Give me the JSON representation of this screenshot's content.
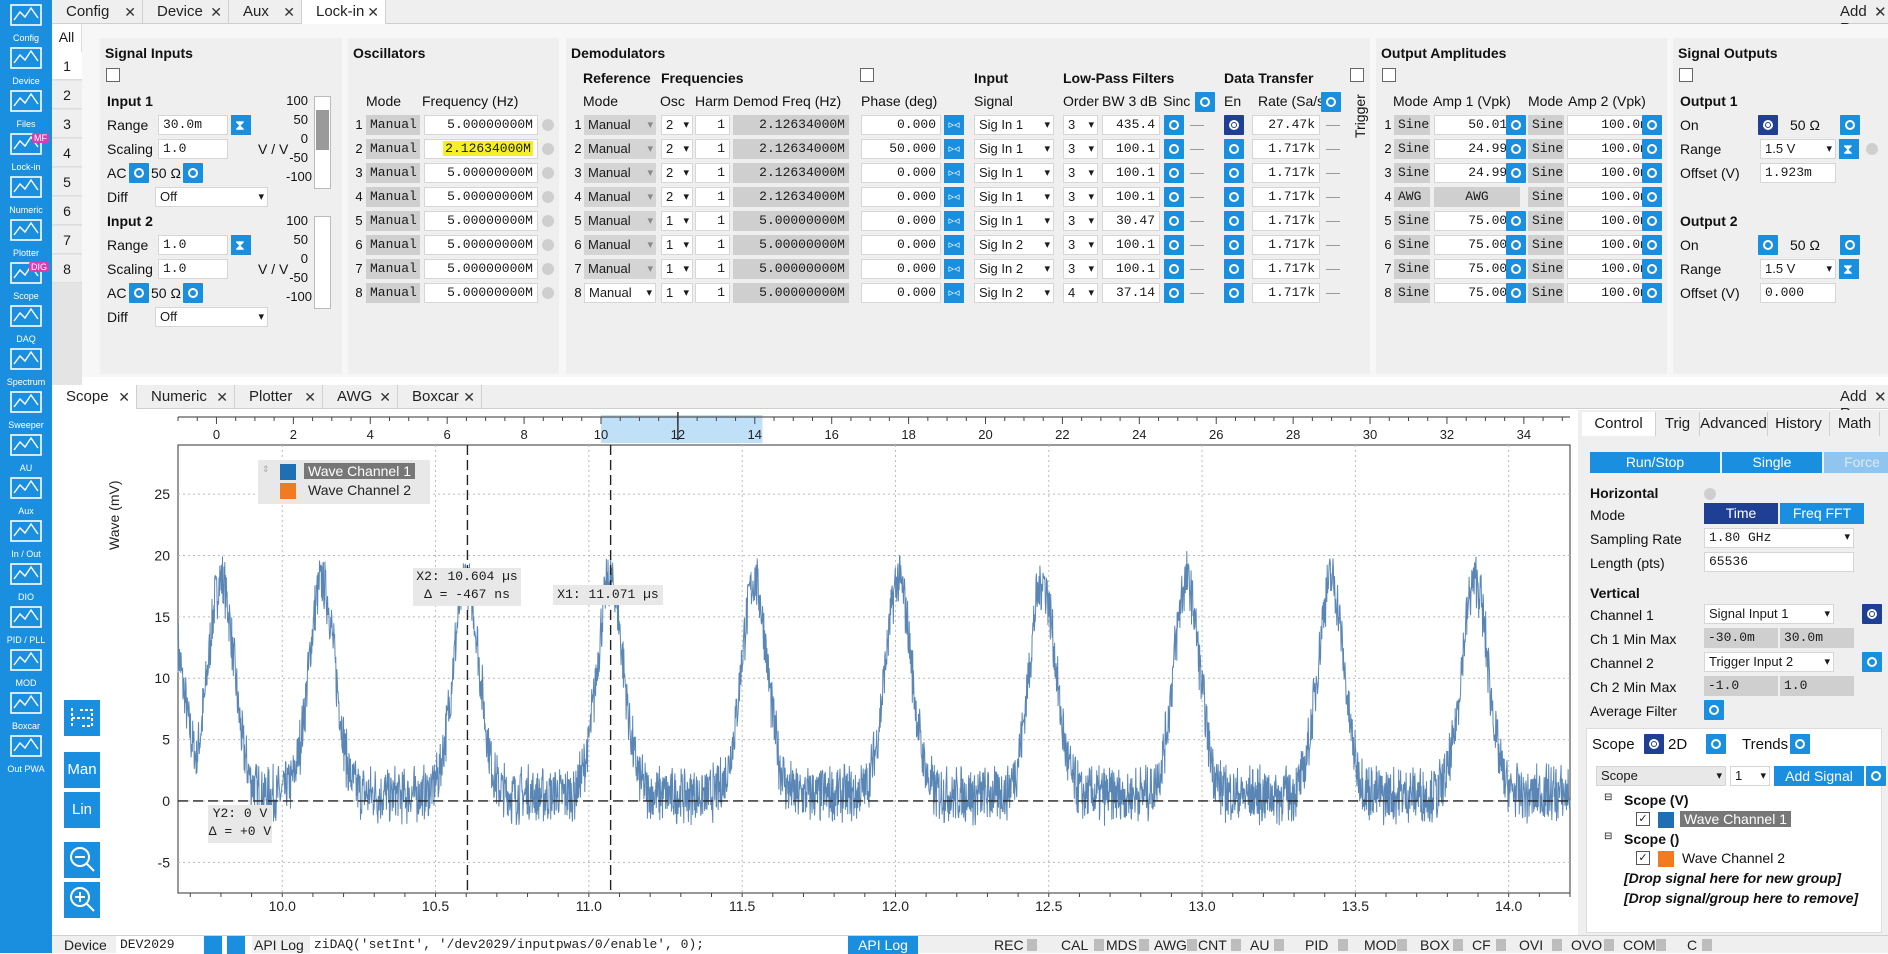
{
  "sidebar": [
    {
      "label": "Config",
      "icon": "gears-icon"
    },
    {
      "label": "Device",
      "icon": "device-icon"
    },
    {
      "label": "Files",
      "icon": "folder-icon"
    },
    {
      "label": "Lock-in",
      "icon": "lockin-icon",
      "badge": "MF"
    },
    {
      "label": "Numeric",
      "icon": "numeric-icon"
    },
    {
      "label": "Plotter",
      "icon": "plotter-icon"
    },
    {
      "label": "Scope",
      "icon": "scope-icon",
      "badge": "DIG"
    },
    {
      "label": "DAQ",
      "icon": "daq-icon"
    },
    {
      "label": "Spectrum",
      "icon": "spectrum-icon"
    },
    {
      "label": "Sweeper",
      "icon": "sweeper-icon"
    },
    {
      "label": "AU",
      "icon": "arithmetic-icon"
    },
    {
      "label": "Aux",
      "icon": "aux-icon"
    },
    {
      "label": "In / Out",
      "icon": "inout-icon"
    },
    {
      "label": "DIO",
      "icon": "dio-icon"
    },
    {
      "label": "PID / PLL",
      "icon": "pid-icon"
    },
    {
      "label": "MOD",
      "icon": "mod-icon"
    },
    {
      "label": "Boxcar",
      "icon": "boxcar-icon"
    },
    {
      "label": "Out PWA",
      "icon": "pwa-icon"
    }
  ],
  "top_tabs": [
    {
      "label": "Config"
    },
    {
      "label": "Device"
    },
    {
      "label": "Aux"
    },
    {
      "label": "Lock-in"
    }
  ],
  "add_row": "Add Row",
  "all_tab": "All",
  "row_tabs": [
    "1",
    "2",
    "3",
    "4",
    "5",
    "6",
    "7",
    "8"
  ],
  "signal_inputs": {
    "title": "Signal Inputs",
    "input1": {
      "title": "Input 1",
      "range_label": "Range",
      "range": "30.0m",
      "scaling_label": "Scaling",
      "scaling": "1.0",
      "unit": "V / V",
      "ac_label": "AC",
      "ohm": "50 Ω",
      "diff_label": "Diff",
      "diff": "Off",
      "scale": [
        "100",
        "50",
        "0",
        "-50",
        "-100"
      ]
    },
    "input2": {
      "title": "Input 2",
      "range_label": "Range",
      "range": "1.0",
      "scaling_label": "Scaling",
      "scaling": "1.0",
      "unit": "V / V",
      "ac_label": "AC",
      "ohm": "50 Ω",
      "diff_label": "Diff",
      "diff": "Off",
      "scale": [
        "100",
        "50",
        "0",
        "-50",
        "-100"
      ]
    }
  },
  "oscillators": {
    "title": "Oscillators",
    "col_mode": "Mode",
    "col_freq": "Frequency (Hz)",
    "rows": [
      {
        "mode": "Manual",
        "freq": "5.00000000M"
      },
      {
        "mode": "Manual",
        "freq": "2.12634000M"
      },
      {
        "mode": "Manual",
        "freq": "5.00000000M"
      },
      {
        "mode": "Manual",
        "freq": "5.00000000M"
      },
      {
        "mode": "Manual",
        "freq": "5.00000000M"
      },
      {
        "mode": "Manual",
        "freq": "5.00000000M"
      },
      {
        "mode": "Manual",
        "freq": "5.00000000M"
      },
      {
        "mode": "Manual",
        "freq": "5.00000000M"
      }
    ]
  },
  "demodulators": {
    "title": "Demodulators",
    "reference": "Reference",
    "frequencies": "Frequencies",
    "input": "Input",
    "lowpass": "Low-Pass Filters",
    "datatransfer": "Data Transfer",
    "trigger": "Trigger",
    "col_mode": "Mode",
    "col_osc": "Osc",
    "col_harm": "Harm",
    "col_demod": "Demod Freq (Hz)",
    "col_phase": "Phase (deg)",
    "col_signal": "Signal",
    "col_order": "Order",
    "col_bw": "BW 3 dB",
    "col_sinc": "Sinc",
    "col_en": "En",
    "col_rate": "Rate (Sa/s)",
    "rows": [
      {
        "mode": "Manual",
        "osc": "2",
        "harm": "1",
        "freq": "2.12634000M",
        "phase": "0.000",
        "signal": "Sig In 1",
        "order": "3",
        "bw": "435.4",
        "rate": "27.47k"
      },
      {
        "mode": "Manual",
        "osc": "2",
        "harm": "1",
        "freq": "2.12634000M",
        "phase": "50.000",
        "signal": "Sig In 1",
        "order": "3",
        "bw": "100.1",
        "rate": "1.717k"
      },
      {
        "mode": "Manual",
        "osc": "2",
        "harm": "1",
        "freq": "2.12634000M",
        "phase": "0.000",
        "signal": "Sig In 1",
        "order": "3",
        "bw": "100.1",
        "rate": "1.717k"
      },
      {
        "mode": "Manual",
        "osc": "2",
        "harm": "1",
        "freq": "2.12634000M",
        "phase": "0.000",
        "signal": "Sig In 1",
        "order": "3",
        "bw": "100.1",
        "rate": "1.717k"
      },
      {
        "mode": "Manual",
        "osc": "1",
        "harm": "1",
        "freq": "5.00000000M",
        "phase": "0.000",
        "signal": "Sig In 1",
        "order": "3",
        "bw": "30.47",
        "rate": "1.717k"
      },
      {
        "mode": "Manual",
        "osc": "1",
        "harm": "1",
        "freq": "5.00000000M",
        "phase": "0.000",
        "signal": "Sig In 2",
        "order": "3",
        "bw": "100.1",
        "rate": "1.717k"
      },
      {
        "mode": "Manual",
        "osc": "1",
        "harm": "1",
        "freq": "5.00000000M",
        "phase": "0.000",
        "signal": "Sig In 2",
        "order": "3",
        "bw": "100.1",
        "rate": "1.717k"
      },
      {
        "mode": "Manual",
        "osc": "1",
        "harm": "1",
        "freq": "5.00000000M",
        "phase": "0.000",
        "signal": "Sig In 2",
        "order": "4",
        "bw": "37.14",
        "rate": "1.717k"
      }
    ]
  },
  "output_amplitudes": {
    "title": "Output Amplitudes",
    "col_mode": "Mode",
    "col_amp1": "Amp 1 (Vpk)",
    "col_mode2": "Mode",
    "col_amp2": "Amp 2 (Vpk)",
    "rows": [
      {
        "mode": "Sine",
        "amp1": "50.01m",
        "mode2": "Sine",
        "amp2": "100.0m"
      },
      {
        "mode": "Sine",
        "amp1": "24.99m",
        "mode2": "Sine",
        "amp2": "100.0m"
      },
      {
        "mode": "Sine",
        "amp1": "24.99m",
        "mode2": "Sine",
        "amp2": "100.0m"
      },
      {
        "mode": "AWG",
        "amp1": "AWG",
        "mode2": "Sine",
        "amp2": "100.0m"
      },
      {
        "mode": "Sine",
        "amp1": "75.00m",
        "mode2": "Sine",
        "amp2": "100.0m"
      },
      {
        "mode": "Sine",
        "amp1": "75.00m",
        "mode2": "Sine",
        "amp2": "100.0m"
      },
      {
        "mode": "Sine",
        "amp1": "75.00m",
        "mode2": "Sine",
        "amp2": "100.0m"
      },
      {
        "mode": "Sine",
        "amp1": "75.00m",
        "mode2": "Sine",
        "amp2": "100.0m"
      }
    ]
  },
  "signal_outputs": {
    "title": "Signal Outputs",
    "output1": {
      "title": "Output 1",
      "on_label": "On",
      "ohm": "50 Ω",
      "range_label": "Range",
      "range": "1.5 V",
      "offset_label": "Offset (V)",
      "offset": "1.923m"
    },
    "output2": {
      "title": "Output 2",
      "on_label": "On",
      "ohm": "50 Ω",
      "range_label": "Range",
      "range": "1.5 V",
      "offset_label": "Offset (V)",
      "offset": "0.000"
    }
  },
  "bottom_tabs": [
    {
      "label": "Scope"
    },
    {
      "label": "Numeric"
    },
    {
      "label": "Plotter"
    },
    {
      "label": "AWG"
    },
    {
      "label": "Boxcar"
    }
  ],
  "side_buttons": {
    "man": "Man",
    "lin": "Lin"
  },
  "scope": {
    "ylabel": "Wave (mV)",
    "legend": [
      "Wave Channel 1",
      "Wave Channel 2"
    ],
    "cursor_x2": "X2: 10.604 µs",
    "cursor_delta": "Δ = -467 ns",
    "cursor_x1": "X1: 11.071 µs",
    "cursor_y2": "Y2: 0 V",
    "cursor_ydelta": "Δ = +0 V"
  },
  "chart_data": {
    "type": "line",
    "title": "",
    "ylabel": "Wave (mV)",
    "xlabel": "",
    "x_unit": "µs",
    "xlim": [
      9.66,
      14.2
    ],
    "ylim": [
      -7.5,
      29
    ],
    "x_ticks": [
      "10.0",
      "10.5",
      "11.0",
      "11.5",
      "12.0",
      "12.5",
      "13.0",
      "13.5",
      "14.0"
    ],
    "y_ticks": [
      "-5",
      "0",
      "5",
      "10",
      "15",
      "20",
      "25"
    ],
    "top_axis_ticks": [
      "0",
      "2",
      "4",
      "6",
      "8",
      "10",
      "12",
      "14",
      "16",
      "18",
      "20",
      "22",
      "24",
      "26",
      "28",
      "30",
      "32",
      "34"
    ],
    "top_axis_range": [
      -1,
      35.2
    ],
    "top_axis_selection": [
      10,
      14.2
    ],
    "series": [
      {
        "name": "Wave Channel 1",
        "color": "#5a86b5",
        "peaks_x": [
          9.8,
          10.13,
          10.6,
          11.07,
          11.54,
          12.01,
          12.48,
          12.95,
          13.42,
          13.89
        ],
        "peak_height": 17.5,
        "baseline": 0.5
      }
    ],
    "cursors": {
      "x1": 11.071,
      "x2": 10.604,
      "y2": 0
    },
    "grid": true
  },
  "control": {
    "tabs": [
      "Control",
      "Trig",
      "Advanced",
      "History",
      "Math"
    ],
    "run_stop": "Run/Stop",
    "single": "Single",
    "force": "Force",
    "horizontal": "Horizontal",
    "mode_label": "Mode",
    "mode_time": "Time",
    "mode_fft": "Freq FFT",
    "sampling_label": "Sampling Rate",
    "sampling": "1.80 GHz",
    "length_label": "Length (pts)",
    "length": "65536",
    "vertical": "Vertical",
    "ch1_label": "Channel 1",
    "ch1": "Signal Input 1",
    "ch1mm_label": "Ch 1 Min Max",
    "ch1_min": "-30.0m",
    "ch1_max": "30.0m",
    "ch2_label": "Channel 2",
    "ch2": "Trigger Input 2",
    "ch2mm_label": "Ch 2 Min Max",
    "ch2_min": "-1.0",
    "ch2_max": "1.0",
    "avg_label": "Average Filter",
    "sub_tabs": [
      "Scope",
      "2D",
      "Trends"
    ],
    "scope_sel": "Scope",
    "scope_num": "1",
    "add_signal": "Add Signal",
    "tree": {
      "g1": "Scope (V)",
      "s1": "Wave Channel 1",
      "g2": "Scope ()",
      "s2": "Wave Channel 2",
      "drop1": "[Drop signal here for new group]",
      "drop2": "[Drop signal/group here to remove]"
    }
  },
  "status": {
    "device_label": "Device",
    "device": "DEV2029",
    "apilog_label": "API Log",
    "command": "ziDAQ('setInt', '/dev2029/inputpwas/0/enable', 0);",
    "apilog_btn": "API Log",
    "indicators": [
      "REC",
      "CAL",
      "MDS",
      "AWG",
      "CNT",
      "AU",
      "PID",
      "MOD",
      "BOX",
      "CF",
      "OVI",
      "OVO",
      "COM",
      "C"
    ]
  }
}
